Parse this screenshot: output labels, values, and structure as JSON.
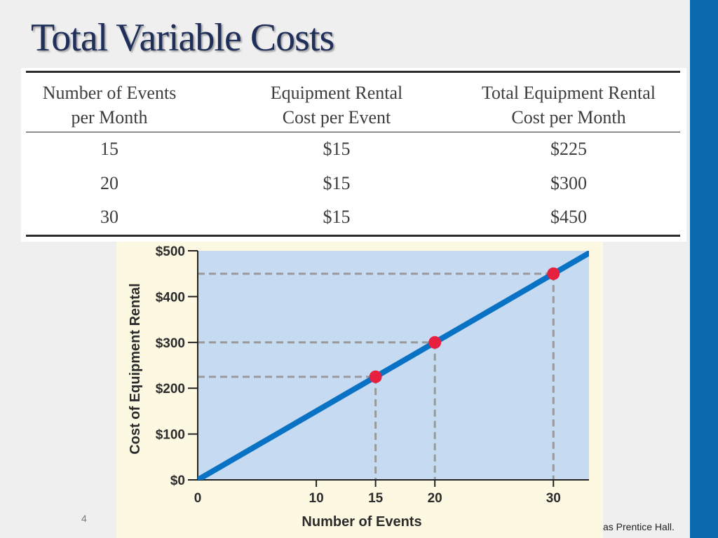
{
  "slide": {
    "title": "Total Variable Costs",
    "page_number": "4",
    "footer_credit": "as Prentice Hall."
  },
  "colors": {
    "sidebar": "#0a6aad",
    "title": "#1f2f5a",
    "plot_bg": "#c6dbf1",
    "panel_bg": "#fdf8e1",
    "line": "#0a72c4",
    "points": "#e8203f",
    "guides": "#999999"
  },
  "table": {
    "headers": [
      [
        "Number of Events",
        "per Month"
      ],
      [
        "Equipment Rental",
        "Cost per Event"
      ],
      [
        "Total Equipment Rental",
        "Cost per Month"
      ]
    ],
    "rows": [
      [
        "15",
        "$15",
        "$225"
      ],
      [
        "20",
        "$15",
        "$300"
      ],
      [
        "30",
        "$15",
        "$450"
      ]
    ]
  },
  "chart_data": {
    "type": "line",
    "title": "",
    "xlabel": "Number of Events",
    "ylabel": "Cost of Equipment Rental",
    "xlim": [
      0,
      33
    ],
    "ylim": [
      0,
      500
    ],
    "x_ticks": [
      0,
      10,
      15,
      20,
      30
    ],
    "x_tick_labels": [
      "0",
      "10",
      "15",
      "20",
      "30"
    ],
    "y_ticks": [
      0,
      100,
      200,
      300,
      400,
      500
    ],
    "y_tick_labels": [
      "$0",
      "$100",
      "$200",
      "$300",
      "$400",
      "$500"
    ],
    "series": [
      {
        "x": [
          0,
          33
        ],
        "y": [
          0,
          495
        ]
      }
    ],
    "points": [
      {
        "x": 15,
        "y": 225
      },
      {
        "x": 20,
        "y": 300
      },
      {
        "x": 30,
        "y": 450
      }
    ],
    "grid": false,
    "legend": "none"
  }
}
